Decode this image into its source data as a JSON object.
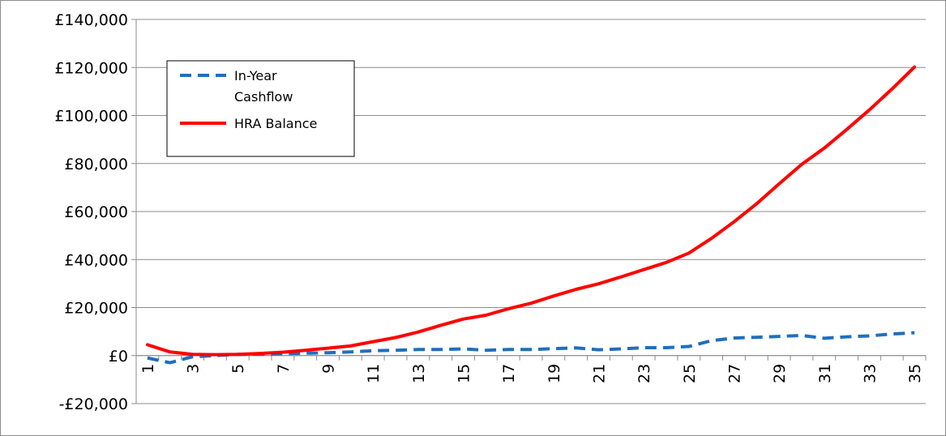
{
  "chart_data": {
    "type": "line",
    "title": "",
    "xlabel": "",
    "ylabel": "",
    "x": [
      1,
      2,
      3,
      4,
      5,
      6,
      7,
      8,
      9,
      10,
      11,
      12,
      13,
      14,
      15,
      16,
      17,
      18,
      19,
      20,
      21,
      22,
      23,
      24,
      25,
      26,
      27,
      28,
      29,
      30,
      31,
      32,
      33,
      34,
      35
    ],
    "x_tick_labels": [
      "1",
      "3",
      "5",
      "7",
      "9",
      "11",
      "13",
      "15",
      "17",
      "19",
      "21",
      "23",
      "25",
      "27",
      "29",
      "31",
      "33",
      "35"
    ],
    "ylim": [
      -20000,
      140000
    ],
    "y_tick_values": [
      -20000,
      0,
      20000,
      40000,
      60000,
      80000,
      100000,
      120000,
      140000
    ],
    "y_tick_labels": [
      "-£20,000",
      "£0",
      "£20,000",
      "£40,000",
      "£60,000",
      "£80,000",
      "£100,000",
      "£120,000",
      "£140,000"
    ],
    "grid": "horizontal",
    "legend_position": "top-left",
    "series": [
      {
        "name": "In-Year Cashflow",
        "legend_lines": [
          "In-Year",
          "Cashflow"
        ],
        "style": "dashed",
        "color": "#1f6fbf",
        "values": [
          -1000,
          -3000,
          -500,
          0,
          500,
          500,
          800,
          1000,
          1200,
          1500,
          2000,
          2200,
          2500,
          2500,
          2800,
          2200,
          2500,
          2500,
          2900,
          3200,
          2400,
          2800,
          3300,
          3300,
          3800,
          6200,
          7300,
          7600,
          8000,
          8400,
          7200,
          7800,
          8200,
          9000,
          9500
        ]
      },
      {
        "name": "HRA Balance",
        "legend_lines": [
          "HRA Balance"
        ],
        "style": "solid",
        "color": "#ff0000",
        "values": [
          4500,
          1500,
          500,
          400,
          500,
          900,
          1400,
          2200,
          3100,
          4000,
          5800,
          7500,
          9800,
          12600,
          15200,
          16800,
          19500,
          21800,
          24800,
          27600,
          29900,
          32800,
          35800,
          38800,
          42700,
          48800,
          55700,
          63200,
          71500,
          79600,
          86400,
          94200,
          102300,
          111000,
          120200
        ]
      }
    ]
  }
}
